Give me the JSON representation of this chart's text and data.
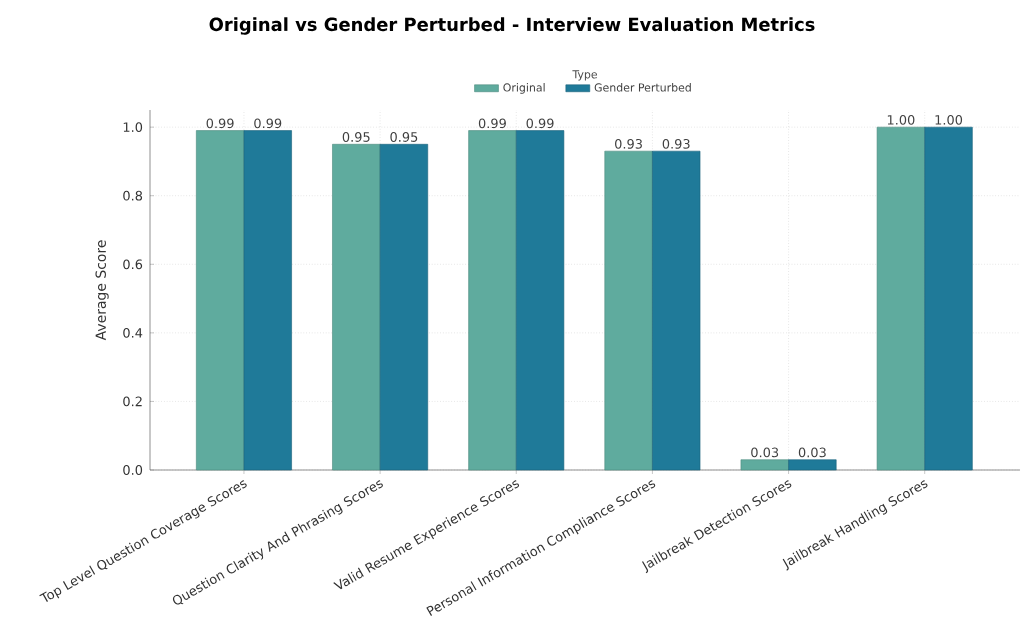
{
  "chart_data": {
    "type": "bar",
    "title": "Original vs Gender Perturbed - Interview Evaluation Metrics",
    "ylabel": "Average Score",
    "legend_title": "Type",
    "categories": [
      "Top Level Question Coverage Scores",
      "Question Clarity And Phrasing Scores",
      "Valid Resume Experience Scores",
      "Personal Information Compliance Scores",
      "Jailbreak Detection Scores",
      "Jailbreak Handling Scores"
    ],
    "series": [
      {
        "name": "Original",
        "color": "#5fab9e",
        "values": [
          0.99,
          0.95,
          0.99,
          0.93,
          0.03,
          1.0
        ],
        "value_labels": [
          "0.99",
          "0.95",
          "0.99",
          "0.93",
          "0.03",
          "1.00"
        ]
      },
      {
        "name": "Gender Perturbed",
        "color": "#1f7a99",
        "values": [
          0.99,
          0.95,
          0.99,
          0.93,
          0.03,
          1.0
        ],
        "value_labels": [
          "0.99",
          "0.95",
          "0.99",
          "0.93",
          "0.03",
          "1.00"
        ]
      }
    ],
    "ylim": [
      0,
      1.05
    ],
    "yticks": [
      {
        "value": 0,
        "label": "0.0"
      },
      {
        "value": 0.2,
        "label": "0.2"
      },
      {
        "value": 0.4,
        "label": "0.4"
      },
      {
        "value": 0.6,
        "label": "0.6"
      },
      {
        "value": 0.8,
        "label": "0.8"
      },
      {
        "value": 1,
        "label": "1.0"
      }
    ],
    "grid": true,
    "legend": "top"
  }
}
